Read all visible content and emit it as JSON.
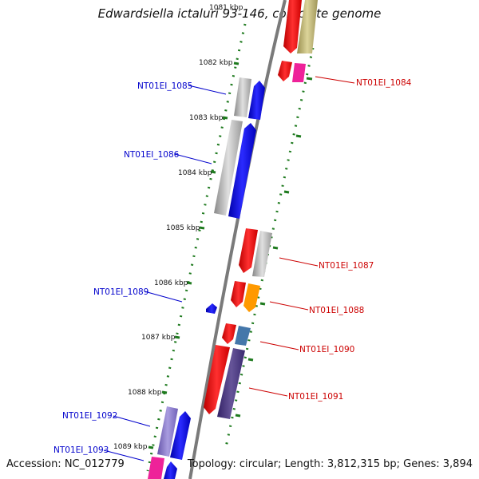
{
  "title": "Edwardsiella ictaluri 93-146, complete genome",
  "footer": {
    "accession": "Accession: NC_012779",
    "summary": "Topology: circular; Length: 3,812,315 bp; Genes: 3,894"
  },
  "ruler": [
    {
      "label": "1081 kbp"
    },
    {
      "label": "1082 kbp"
    },
    {
      "label": "1083 kbp"
    },
    {
      "label": "1084 kbp"
    },
    {
      "label": "1085 kbp"
    },
    {
      "label": "1086 kbp"
    },
    {
      "label": "1087 kbp"
    },
    {
      "label": "1088 kbp"
    },
    {
      "label": "1089 kbp"
    }
  ],
  "gene_labels": [
    {
      "text": "NT01EI_1084",
      "color": "#cc0000"
    },
    {
      "text": "NT01EI_1085",
      "color": "#0000cc"
    },
    {
      "text": "NT01EI_1086",
      "color": "#0000cc"
    },
    {
      "text": "NT01EI_1087",
      "color": "#cc0000"
    },
    {
      "text": "NT01EI_1088",
      "color": "#cc0000"
    },
    {
      "text": "NT01EI_1089",
      "color": "#0000cc"
    },
    {
      "text": "NT01EI_1090",
      "color": "#cc0000"
    },
    {
      "text": "NT01EI_1091",
      "color": "#cc0000"
    },
    {
      "text": "NT01EI_1092",
      "color": "#0000cc"
    },
    {
      "text": "NT01EI_1093",
      "color": "#0000cc"
    }
  ],
  "colors": {
    "backbone": "#808080",
    "ruler_dots": "#1e7a1e",
    "forward_red": "#ee1111",
    "reverse_blue": "#1111ee",
    "grey": "#b8b8b8",
    "khaki": "#c8c080",
    "magenta": "#ee2299",
    "orange": "#ff9900",
    "steel": "#4477aa",
    "slate": "#554488",
    "lavender": "#8877cc"
  }
}
